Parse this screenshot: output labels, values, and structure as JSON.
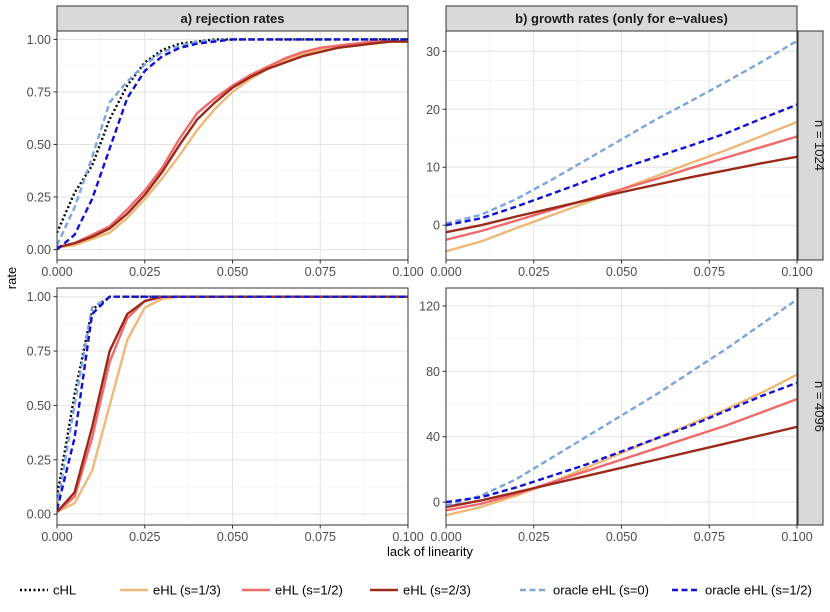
{
  "figure": {
    "xlabel": "lack of linearity",
    "ylabel": "rate",
    "columns": [
      "a) rejection rates",
      "b) growth rates (only for e−values)"
    ],
    "rows": [
      "n = 1024",
      "n = 4096"
    ]
  },
  "legend": [
    {
      "name": "cHL",
      "color": "#000000",
      "dash": "dotted"
    },
    {
      "name": "eHL (s=1/3)",
      "color": "#f0b878",
      "dash": "solid"
    },
    {
      "name": "eHL (s=1/2)",
      "color": "#ef6a6a",
      "dash": "solid"
    },
    {
      "name": "eHL (s=2/3)",
      "color": "#9b2a1a",
      "dash": "solid"
    },
    {
      "name": "oracle eHL (s=0)",
      "color": "#7aa6dc",
      "dash": "dashed"
    },
    {
      "name": "oracle eHL (s=1/2)",
      "color": "#1010d8",
      "dash": "dashed"
    }
  ],
  "chart_data": [
    {
      "type": "line",
      "panel": "a) rejection rates / n = 1024",
      "xlim": [
        0,
        0.1
      ],
      "ylim": [
        -0.05,
        1.04
      ],
      "xticks": [
        "0.000",
        "0.025",
        "0.050",
        "0.075",
        "0.100"
      ],
      "yticks": [
        "0.00",
        "0.25",
        "0.50",
        "0.75",
        "1.00"
      ],
      "x": [
        0,
        0.005,
        0.01,
        0.015,
        0.02,
        0.025,
        0.03,
        0.035,
        0.04,
        0.045,
        0.05,
        0.055,
        0.06,
        0.065,
        0.07,
        0.075,
        0.08,
        0.085,
        0.09,
        0.095,
        0.1
      ],
      "series": [
        {
          "name": "cHL",
          "values": [
            0.08,
            0.27,
            0.4,
            0.62,
            0.78,
            0.89,
            0.95,
            0.98,
            0.99,
            1.0,
            1.0,
            1.0,
            1.0,
            1.0,
            1.0,
            1.0,
            1.0,
            1.0,
            1.0,
            1.0,
            1.0
          ]
        },
        {
          "name": "eHL (s=1/3)",
          "values": [
            0.01,
            0.02,
            0.05,
            0.08,
            0.15,
            0.24,
            0.34,
            0.45,
            0.57,
            0.67,
            0.75,
            0.81,
            0.86,
            0.9,
            0.93,
            0.95,
            0.97,
            0.98,
            0.98,
            0.99,
            0.99
          ]
        },
        {
          "name": "eHL (s=1/2)",
          "values": [
            0.01,
            0.03,
            0.07,
            0.11,
            0.19,
            0.28,
            0.39,
            0.53,
            0.65,
            0.72,
            0.78,
            0.83,
            0.87,
            0.91,
            0.94,
            0.96,
            0.97,
            0.98,
            0.99,
            0.99,
            0.99
          ]
        },
        {
          "name": "eHL (s=2/3)",
          "values": [
            0.01,
            0.03,
            0.06,
            0.1,
            0.17,
            0.26,
            0.37,
            0.5,
            0.62,
            0.7,
            0.77,
            0.82,
            0.86,
            0.89,
            0.92,
            0.94,
            0.96,
            0.97,
            0.98,
            0.99,
            0.99
          ]
        },
        {
          "name": "oracle eHL (s=0)",
          "values": [
            0.02,
            0.2,
            0.44,
            0.7,
            0.8,
            0.88,
            0.94,
            0.97,
            0.99,
            0.995,
            1.0,
            1.0,
            1.0,
            1.0,
            1.0,
            1.0,
            1.0,
            1.0,
            1.0,
            1.0,
            1.0
          ]
        },
        {
          "name": "oracle eHL (s=1/2)",
          "values": [
            0.0,
            0.07,
            0.24,
            0.48,
            0.72,
            0.85,
            0.92,
            0.96,
            0.98,
            0.99,
            1.0,
            1.0,
            1.0,
            1.0,
            1.0,
            1.0,
            1.0,
            1.0,
            1.0,
            1.0,
            1.0
          ]
        }
      ]
    },
    {
      "type": "line",
      "panel": "b) growth rates (only for e−values) / n = 1024",
      "xlim": [
        0,
        0.1
      ],
      "ylim": [
        -6,
        33.5
      ],
      "xticks": [
        "0.000",
        "0.025",
        "0.050",
        "0.075",
        "0.100"
      ],
      "yticks": [
        "0",
        "10",
        "20",
        "30"
      ],
      "x": [
        0,
        0.01,
        0.02,
        0.03,
        0.04,
        0.05,
        0.06,
        0.07,
        0.08,
        0.09,
        0.1
      ],
      "series": [
        {
          "name": "eHL (s=1/3)",
          "values": [
            -4.5,
            -2.8,
            -0.5,
            1.7,
            3.9,
            6.2,
            8.5,
            10.8,
            13.0,
            15.4,
            17.8
          ]
        },
        {
          "name": "eHL (s=1/2)",
          "values": [
            -2.5,
            -1.0,
            0.8,
            2.6,
            4.4,
            6.2,
            8.0,
            9.9,
            11.7,
            13.5,
            15.3
          ]
        },
        {
          "name": "eHL (s=2/3)",
          "values": [
            -1.2,
            0.0,
            1.5,
            2.9,
            4.3,
            5.7,
            7.0,
            8.3,
            9.5,
            10.7,
            11.8
          ]
        },
        {
          "name": "oracle eHL (s=0)",
          "values": [
            0.3,
            1.8,
            4.5,
            7.8,
            11.3,
            14.8,
            18.3,
            21.5,
            24.8,
            28.2,
            31.8
          ]
        },
        {
          "name": "oracle eHL (s=1/2)",
          "values": [
            0.0,
            1.2,
            3.2,
            5.4,
            7.6,
            9.8,
            11.8,
            13.8,
            15.9,
            18.4,
            20.8
          ]
        }
      ]
    },
    {
      "type": "line",
      "panel": "a) rejection rates / n = 4096",
      "xlim": [
        0,
        0.1
      ],
      "ylim": [
        -0.05,
        1.04
      ],
      "xticks": [
        "0.000",
        "0.025",
        "0.050",
        "0.075",
        "0.100"
      ],
      "yticks": [
        "0.00",
        "0.25",
        "0.50",
        "0.75",
        "1.00"
      ],
      "x": [
        0,
        0.005,
        0.01,
        0.015,
        0.02,
        0.025,
        0.03,
        0.035,
        0.04,
        0.05,
        0.06,
        0.07,
        0.08,
        0.09,
        0.1
      ],
      "series": [
        {
          "name": "cHL",
          "values": [
            0.08,
            0.55,
            0.94,
            1.0,
            1.0,
            1.0,
            1.0,
            1.0,
            1.0,
            1.0,
            1.0,
            1.0,
            1.0,
            1.0,
            1.0
          ]
        },
        {
          "name": "eHL (s=1/3)",
          "values": [
            0.01,
            0.05,
            0.2,
            0.5,
            0.8,
            0.95,
            0.99,
            1.0,
            1.0,
            1.0,
            1.0,
            1.0,
            1.0,
            1.0,
            1.0
          ]
        },
        {
          "name": "eHL (s=1/2)",
          "values": [
            0.01,
            0.08,
            0.35,
            0.7,
            0.9,
            0.98,
            1.0,
            1.0,
            1.0,
            1.0,
            1.0,
            1.0,
            1.0,
            1.0,
            1.0
          ]
        },
        {
          "name": "eHL (s=2/3)",
          "values": [
            0.01,
            0.1,
            0.4,
            0.75,
            0.92,
            0.98,
            1.0,
            1.0,
            1.0,
            1.0,
            1.0,
            1.0,
            1.0,
            1.0,
            1.0
          ]
        },
        {
          "name": "oracle eHL (s=0)",
          "values": [
            0.03,
            0.5,
            0.95,
            1.0,
            1.0,
            1.0,
            1.0,
            1.0,
            1.0,
            1.0,
            1.0,
            1.0,
            1.0,
            1.0,
            1.0
          ]
        },
        {
          "name": "oracle eHL (s=1/2)",
          "values": [
            0.02,
            0.35,
            0.92,
            1.0,
            1.0,
            1.0,
            1.0,
            1.0,
            1.0,
            1.0,
            1.0,
            1.0,
            1.0,
            1.0,
            1.0
          ]
        }
      ]
    },
    {
      "type": "line",
      "panel": "b) growth rates (only for e−values) / n = 4096",
      "xlim": [
        0,
        0.1
      ],
      "ylim": [
        -14,
        131
      ],
      "xticks": [
        "0.000",
        "0.025",
        "0.050",
        "0.075",
        "0.100"
      ],
      "yticks": [
        "0",
        "40",
        "80",
        "120"
      ],
      "x": [
        0,
        0.01,
        0.02,
        0.03,
        0.04,
        0.05,
        0.06,
        0.07,
        0.08,
        0.09,
        0.1
      ],
      "series": [
        {
          "name": "eHL (s=1/3)",
          "values": [
            -8,
            -3,
            4,
            12,
            21,
            30,
            39,
            48,
            57,
            67,
            78
          ]
        },
        {
          "name": "eHL (s=1/2)",
          "values": [
            -5,
            -1,
            5,
            12,
            19,
            26,
            33,
            40,
            47,
            55,
            63
          ]
        },
        {
          "name": "eHL (s=2/3)",
          "values": [
            -3,
            1,
            6,
            11,
            16,
            21,
            26,
            31,
            36,
            41,
            46
          ]
        },
        {
          "name": "oracle eHL (s=0)",
          "values": [
            -2,
            4,
            14,
            27,
            40,
            53,
            66,
            80,
            94,
            109,
            124
          ]
        },
        {
          "name": "oracle eHL (s=1/2)",
          "values": [
            0,
            3,
            9,
            16,
            23,
            31,
            39,
            47,
            56,
            65,
            73
          ]
        }
      ]
    }
  ]
}
